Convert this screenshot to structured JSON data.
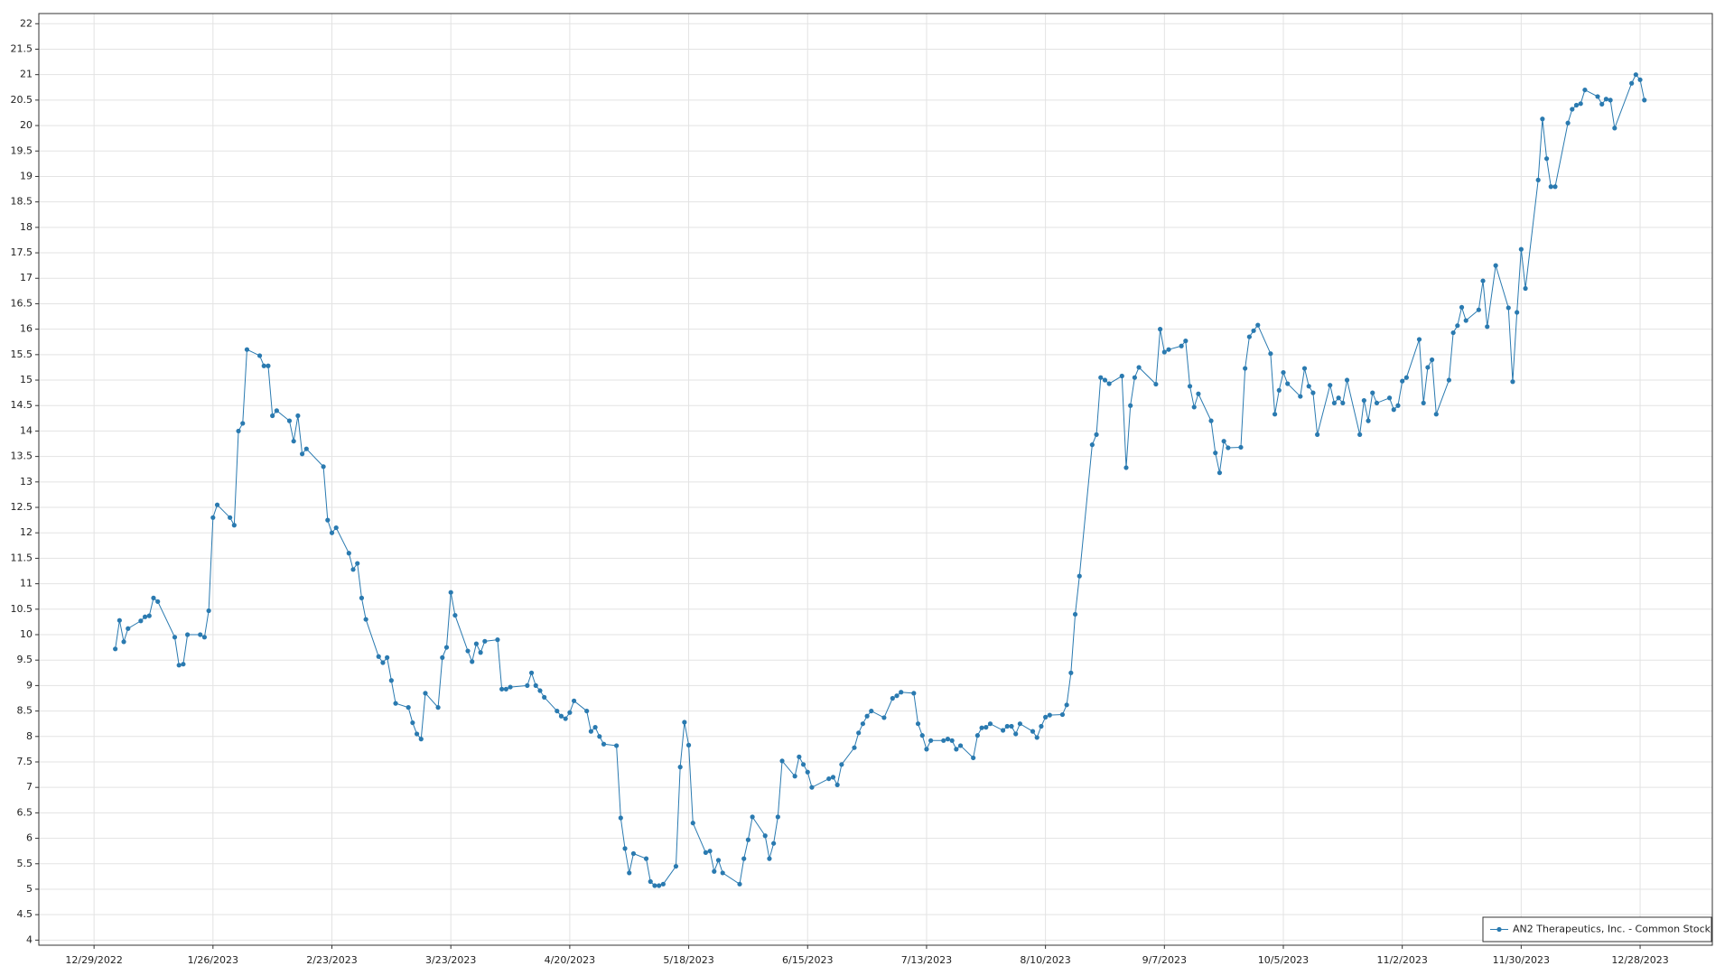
{
  "chart_data": {
    "type": "line",
    "x": [
      "1/3/2023",
      "1/4/2023",
      "1/5/2023",
      "1/6/2023",
      "1/9/2023",
      "1/10/2023",
      "1/11/2023",
      "1/12/2023",
      "1/13/2023",
      "1/17/2023",
      "1/18/2023",
      "1/19/2023",
      "1/20/2023",
      "1/23/2023",
      "1/24/2023",
      "1/25/2023",
      "1/26/2023",
      "1/27/2023",
      "1/30/2023",
      "1/31/2023",
      "2/1/2023",
      "2/2/2023",
      "2/3/2023",
      "2/6/2023",
      "2/7/2023",
      "2/8/2023",
      "2/9/2023",
      "2/10/2023",
      "2/13/2023",
      "2/14/2023",
      "2/15/2023",
      "2/16/2023",
      "2/17/2023",
      "2/21/2023",
      "2/22/2023",
      "2/23/2023",
      "2/24/2023",
      "2/27/2023",
      "2/28/2023",
      "3/1/2023",
      "3/2/2023",
      "3/3/2023",
      "3/6/2023",
      "3/7/2023",
      "3/8/2023",
      "3/9/2023",
      "3/10/2023",
      "3/13/2023",
      "3/14/2023",
      "3/15/2023",
      "3/16/2023",
      "3/17/2023",
      "3/20/2023",
      "3/21/2023",
      "3/22/2023",
      "3/23/2023",
      "3/24/2023",
      "3/27/2023",
      "3/28/2023",
      "3/29/2023",
      "3/30/2023",
      "3/31/2023",
      "4/3/2023",
      "4/4/2023",
      "4/5/2023",
      "4/6/2023",
      "4/10/2023",
      "4/11/2023",
      "4/12/2023",
      "4/13/2023",
      "4/14/2023",
      "4/17/2023",
      "4/18/2023",
      "4/19/2023",
      "4/20/2023",
      "4/21/2023",
      "4/24/2023",
      "4/25/2023",
      "4/26/2023",
      "4/27/2023",
      "4/28/2023",
      "5/1/2023",
      "5/2/2023",
      "5/3/2023",
      "5/4/2023",
      "5/5/2023",
      "5/8/2023",
      "5/9/2023",
      "5/10/2023",
      "5/11/2023",
      "5/12/2023",
      "5/15/2023",
      "5/16/2023",
      "5/17/2023",
      "5/18/2023",
      "5/19/2023",
      "5/22/2023",
      "5/23/2023",
      "5/24/2023",
      "5/25/2023",
      "5/26/2023",
      "5/30/2023",
      "5/31/2023",
      "6/1/2023",
      "6/2/2023",
      "6/5/2023",
      "6/6/2023",
      "6/7/2023",
      "6/8/2023",
      "6/9/2023",
      "6/12/2023",
      "6/13/2023",
      "6/14/2023",
      "6/15/2023",
      "6/16/2023",
      "6/20/2023",
      "6/21/2023",
      "6/22/2023",
      "6/23/2023",
      "6/26/2023",
      "6/27/2023",
      "6/28/2023",
      "6/29/2023",
      "6/30/2023",
      "7/3/2023",
      "7/5/2023",
      "7/6/2023",
      "7/7/2023",
      "7/10/2023",
      "7/11/2023",
      "7/12/2023",
      "7/13/2023",
      "7/14/2023",
      "7/17/2023",
      "7/18/2023",
      "7/19/2023",
      "7/20/2023",
      "7/21/2023",
      "7/24/2023",
      "7/25/2023",
      "7/26/2023",
      "7/27/2023",
      "7/28/2023",
      "7/31/2023",
      "8/1/2023",
      "8/2/2023",
      "8/3/2023",
      "8/4/2023",
      "8/7/2023",
      "8/8/2023",
      "8/9/2023",
      "8/10/2023",
      "8/11/2023",
      "8/14/2023",
      "8/15/2023",
      "8/16/2023",
      "8/17/2023",
      "8/18/2023",
      "8/21/2023",
      "8/22/2023",
      "8/23/2023",
      "8/24/2023",
      "8/25/2023",
      "8/28/2023",
      "8/29/2023",
      "8/30/2023",
      "8/31/2023",
      "9/1/2023",
      "9/5/2023",
      "9/6/2023",
      "9/7/2023",
      "9/8/2023",
      "9/11/2023",
      "9/12/2023",
      "9/13/2023",
      "9/14/2023",
      "9/15/2023",
      "9/18/2023",
      "9/19/2023",
      "9/20/2023",
      "9/21/2023",
      "9/22/2023",
      "9/25/2023",
      "9/26/2023",
      "9/27/2023",
      "9/28/2023",
      "9/29/2023",
      "10/2/2023",
      "10/3/2023",
      "10/4/2023",
      "10/5/2023",
      "10/6/2023",
      "10/9/2023",
      "10/10/2023",
      "10/11/2023",
      "10/12/2023",
      "10/13/2023",
      "10/16/2023",
      "10/17/2023",
      "10/18/2023",
      "10/19/2023",
      "10/20/2023",
      "10/23/2023",
      "10/24/2023",
      "10/25/2023",
      "10/26/2023",
      "10/27/2023",
      "10/30/2023",
      "10/31/2023",
      "11/1/2023",
      "11/2/2023",
      "11/3/2023",
      "11/6/2023",
      "11/7/2023",
      "11/8/2023",
      "11/9/2023",
      "11/10/2023",
      "11/13/2023",
      "11/14/2023",
      "11/15/2023",
      "11/16/2023",
      "11/17/2023",
      "11/20/2023",
      "11/21/2023",
      "11/22/2023",
      "11/24/2023",
      "11/27/2023",
      "11/28/2023",
      "11/29/2023",
      "11/30/2023",
      "12/1/2023",
      "12/4/2023",
      "12/5/2023",
      "12/6/2023",
      "12/7/2023",
      "12/8/2023",
      "12/11/2023",
      "12/12/2023",
      "12/13/2023",
      "12/14/2023",
      "12/15/2023",
      "12/18/2023",
      "12/19/2023",
      "12/20/2023",
      "12/21/2023",
      "12/22/2023",
      "12/26/2023",
      "12/27/2023",
      "12/28/2023",
      "12/29/2023"
    ],
    "series": [
      {
        "name": "AN2 Therapeutics, Inc. - Common Stock",
        "color": "#2a7ab0",
        "values": [
          9.72,
          10.28,
          9.86,
          10.12,
          10.27,
          10.35,
          10.37,
          10.72,
          10.65,
          9.95,
          9.4,
          9.42,
          10.0,
          10.0,
          9.95,
          10.47,
          12.3,
          12.55,
          12.3,
          12.15,
          14.0,
          14.15,
          15.6,
          15.48,
          15.28,
          15.28,
          14.3,
          14.4,
          14.2,
          13.8,
          14.3,
          13.55,
          13.65,
          13.3,
          12.25,
          12.0,
          12.1,
          11.6,
          11.28,
          11.4,
          10.72,
          10.3,
          9.57,
          9.45,
          9.55,
          9.1,
          8.65,
          8.57,
          8.27,
          8.05,
          7.95,
          8.85,
          8.57,
          9.55,
          9.75,
          10.83,
          10.38,
          9.68,
          9.47,
          9.82,
          9.65,
          9.87,
          9.9,
          8.93,
          8.93,
          8.97,
          9.0,
          9.25,
          9.0,
          8.9,
          8.77,
          8.5,
          8.4,
          8.35,
          8.47,
          8.7,
          8.5,
          8.1,
          8.18,
          8.0,
          7.85,
          7.82,
          6.4,
          5.8,
          5.32,
          5.7,
          5.6,
          5.15,
          5.07,
          5.07,
          5.1,
          5.45,
          7.4,
          8.28,
          7.83,
          6.3,
          5.72,
          5.75,
          5.35,
          5.57,
          5.32,
          5.1,
          5.6,
          5.97,
          6.42,
          6.05,
          5.6,
          5.9,
          6.42,
          7.52,
          7.22,
          7.6,
          7.45,
          7.3,
          7.0,
          7.17,
          7.2,
          7.05,
          7.45,
          7.78,
          8.07,
          8.25,
          8.4,
          8.5,
          8.37,
          8.75,
          8.8,
          8.87,
          8.85,
          8.25,
          8.02,
          7.75,
          7.92,
          7.92,
          7.95,
          7.92,
          7.75,
          7.82,
          7.58,
          8.02,
          8.17,
          8.18,
          8.25,
          8.12,
          8.2,
          8.2,
          8.05,
          8.25,
          8.1,
          7.98,
          8.2,
          8.38,
          8.42,
          8.43,
          8.62,
          9.25,
          10.4,
          11.15,
          13.73,
          13.93,
          15.05,
          15.0,
          14.93,
          15.08,
          13.28,
          14.5,
          15.05,
          15.25,
          14.92,
          16.0,
          15.55,
          15.6,
          15.67,
          15.77,
          14.88,
          14.47,
          14.73,
          14.2,
          13.57,
          13.18,
          13.8,
          13.67,
          13.68,
          15.23,
          15.85,
          15.97,
          16.08,
          15.52,
          14.33,
          14.8,
          15.15,
          14.93,
          14.68,
          15.23,
          14.88,
          14.75,
          13.93,
          14.9,
          14.55,
          14.65,
          14.55,
          15.0,
          13.93,
          14.6,
          14.2,
          14.75,
          14.55,
          14.65,
          14.42,
          14.5,
          14.98,
          15.05,
          15.8,
          14.55,
          15.25,
          15.4,
          14.33,
          15.0,
          15.93,
          16.07,
          16.43,
          16.17,
          16.38,
          16.95,
          16.05,
          17.25,
          16.42,
          14.97,
          16.33,
          17.57,
          16.8,
          18.93,
          20.13,
          19.35,
          18.8,
          18.8,
          20.05,
          20.32,
          20.4,
          20.43,
          20.7,
          20.57,
          20.42,
          20.52,
          20.5,
          19.95,
          20.83,
          21.0,
          20.9,
          20.5
        ]
      }
    ],
    "xlim": [
      "12/16/2022",
      "1/14/2024"
    ],
    "xticks": [
      "12/29/2022",
      "1/26/2023",
      "2/23/2023",
      "3/23/2023",
      "4/20/2023",
      "5/18/2023",
      "6/15/2023",
      "7/13/2023",
      "8/10/2023",
      "9/7/2023",
      "10/5/2023",
      "11/2/2023",
      "11/30/2023",
      "12/28/2023"
    ],
    "ylim": [
      3.9,
      22.2
    ],
    "yticks": [
      4,
      4.5,
      5,
      5.5,
      6,
      6.5,
      7,
      7.5,
      8,
      8.5,
      9,
      9.5,
      10,
      10.5,
      11,
      11.5,
      12,
      12.5,
      13,
      13.5,
      14,
      14.5,
      15,
      15.5,
      16,
      16.5,
      17,
      17.5,
      18,
      18.5,
      19,
      19.5,
      20,
      20.5,
      21,
      21.5,
      22
    ],
    "grid": true,
    "legend": "bottom-right",
    "markers": true
  }
}
